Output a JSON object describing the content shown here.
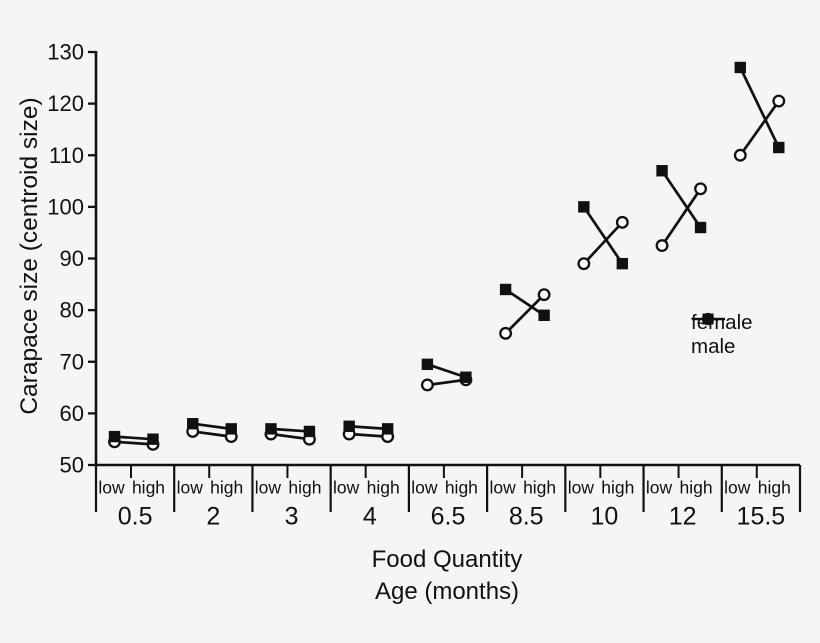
{
  "chart_data": {
    "type": "line",
    "title": "",
    "ylabel": "Carapace size (centroid size)",
    "xlabel_line1": "Food Quantity",
    "xlabel_line2": "Age (months)",
    "ylim": [
      50,
      130
    ],
    "y_ticks": [
      50,
      60,
      70,
      80,
      90,
      100,
      110,
      120,
      130
    ],
    "categories": [
      "0.5",
      "2",
      "3",
      "4",
      "6.5",
      "8.5",
      "10",
      "12",
      "15.5"
    ],
    "sub_categories": [
      "low",
      "high"
    ],
    "grid": "off",
    "legend_position": "right-middle",
    "series": [
      {
        "name": "female",
        "marker": "circle",
        "marker_fill": "#ffffff",
        "line_color": "#111111",
        "values": [
          [
            54.5,
            54
          ],
          [
            56.5,
            55.5
          ],
          [
            56,
            55
          ],
          [
            56,
            55.5
          ],
          [
            65.5,
            66.5
          ],
          [
            75.5,
            83
          ],
          [
            89,
            97
          ],
          [
            92.5,
            103.5
          ],
          [
            110,
            120.5
          ]
        ]
      },
      {
        "name": "male",
        "marker": "square",
        "marker_fill": "#111111",
        "line_color": "#111111",
        "values": [
          [
            55.5,
            55
          ],
          [
            58,
            57
          ],
          [
            57,
            56.5
          ],
          [
            57.5,
            57
          ],
          [
            69.5,
            67
          ],
          [
            84,
            79
          ],
          [
            100,
            89
          ],
          [
            107,
            96
          ],
          [
            127,
            111.5
          ]
        ]
      }
    ],
    "colors": {
      "foreground": "#111111",
      "background": "#f5f5f5"
    }
  }
}
